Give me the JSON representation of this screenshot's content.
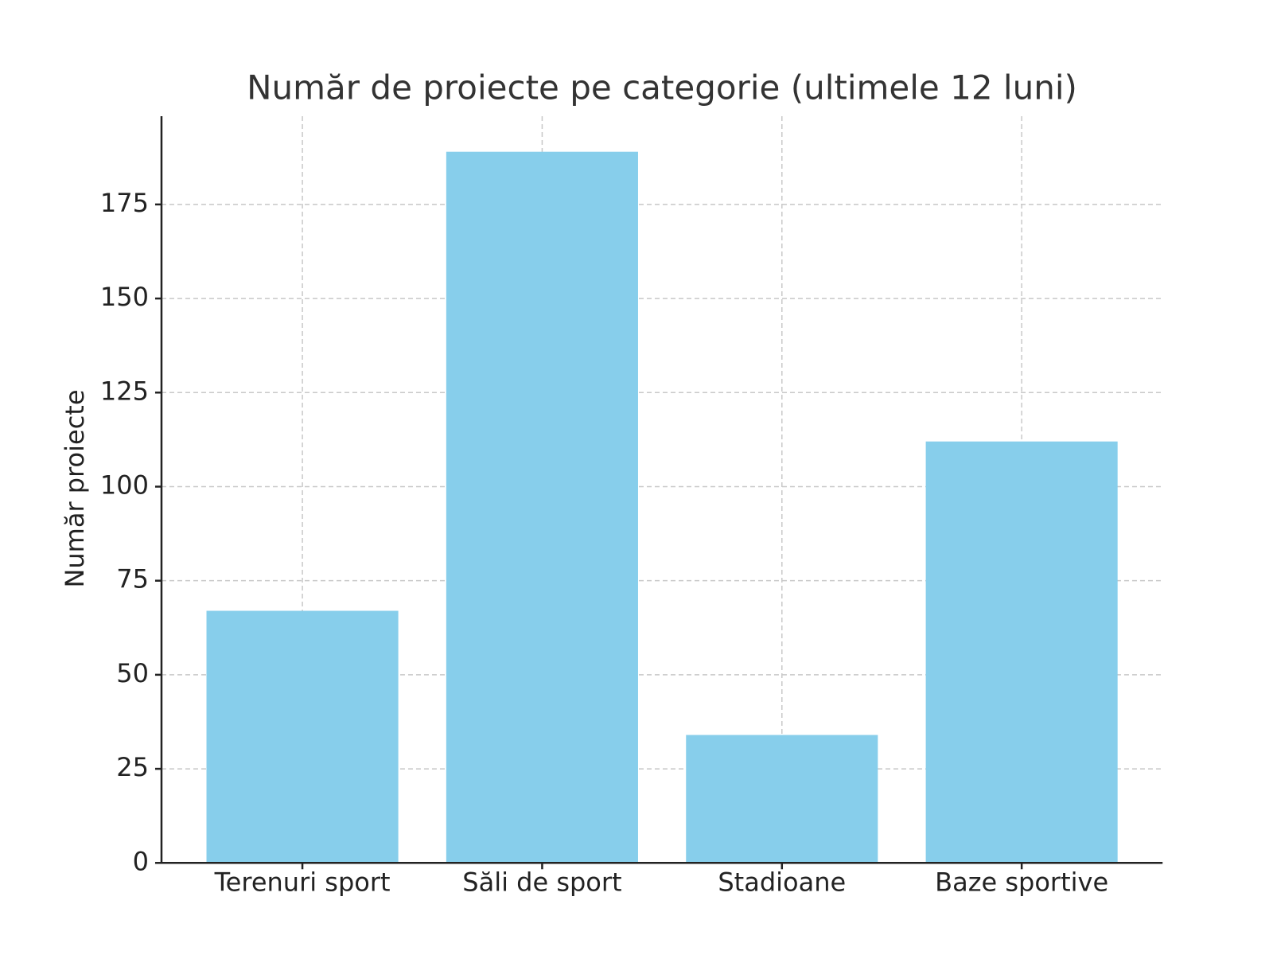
{
  "chart_data": {
    "type": "bar",
    "title": "Număr de proiecte pe categorie (ultimele 12 luni)",
    "y_label": "Număr proiecte",
    "categories": [
      "Terenuri sport",
      "Săli de sport",
      "Stadioane",
      "Baze sportive"
    ],
    "values": [
      67,
      189,
      34,
      112
    ],
    "color": "#87ceeb",
    "ylim": [
      0,
      198.45
    ],
    "yticks": [
      0,
      25,
      50,
      75,
      100,
      125,
      150,
      175
    ],
    "grid": true
  }
}
